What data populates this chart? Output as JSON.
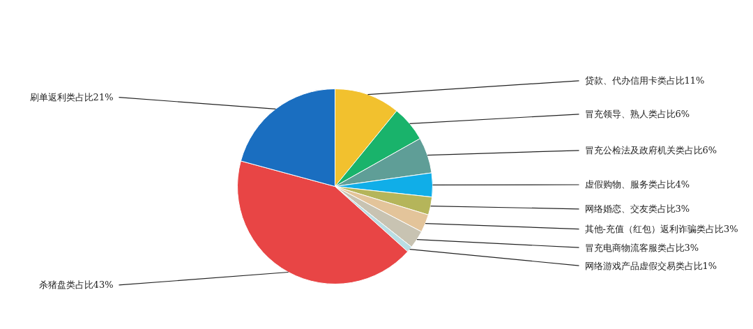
{
  "chart_data": {
    "type": "pie",
    "categories": [
      "贷款、代办信用卡类",
      "冒充领导、熟人类",
      "冒充公检法及政府机关类",
      "虚假购物、服务类",
      "网络婚恋、交友类",
      "其他-充值（红包）返利诈骗类",
      "冒充电商物流客服类",
      "网络游戏产品虚假交易类",
      "杀猪盘类",
      "刷单返利类"
    ],
    "values": [
      11,
      6,
      6,
      4,
      3,
      3,
      3,
      1,
      43,
      21
    ],
    "value_labels": [
      "占比11%",
      "占比6%",
      "占比6%",
      "占比4%",
      "占比3%",
      "占比3%",
      "占比3%",
      "占比1%",
      "占比43%",
      "占比21%"
    ],
    "colors": [
      "#f2c12e",
      "#19b36b",
      "#5f9e97",
      "#10aee8",
      "#b5b55a",
      "#e3c49a",
      "#c8c3b2",
      "#b9dde3",
      "#e84545",
      "#1a6ec0"
    ]
  }
}
